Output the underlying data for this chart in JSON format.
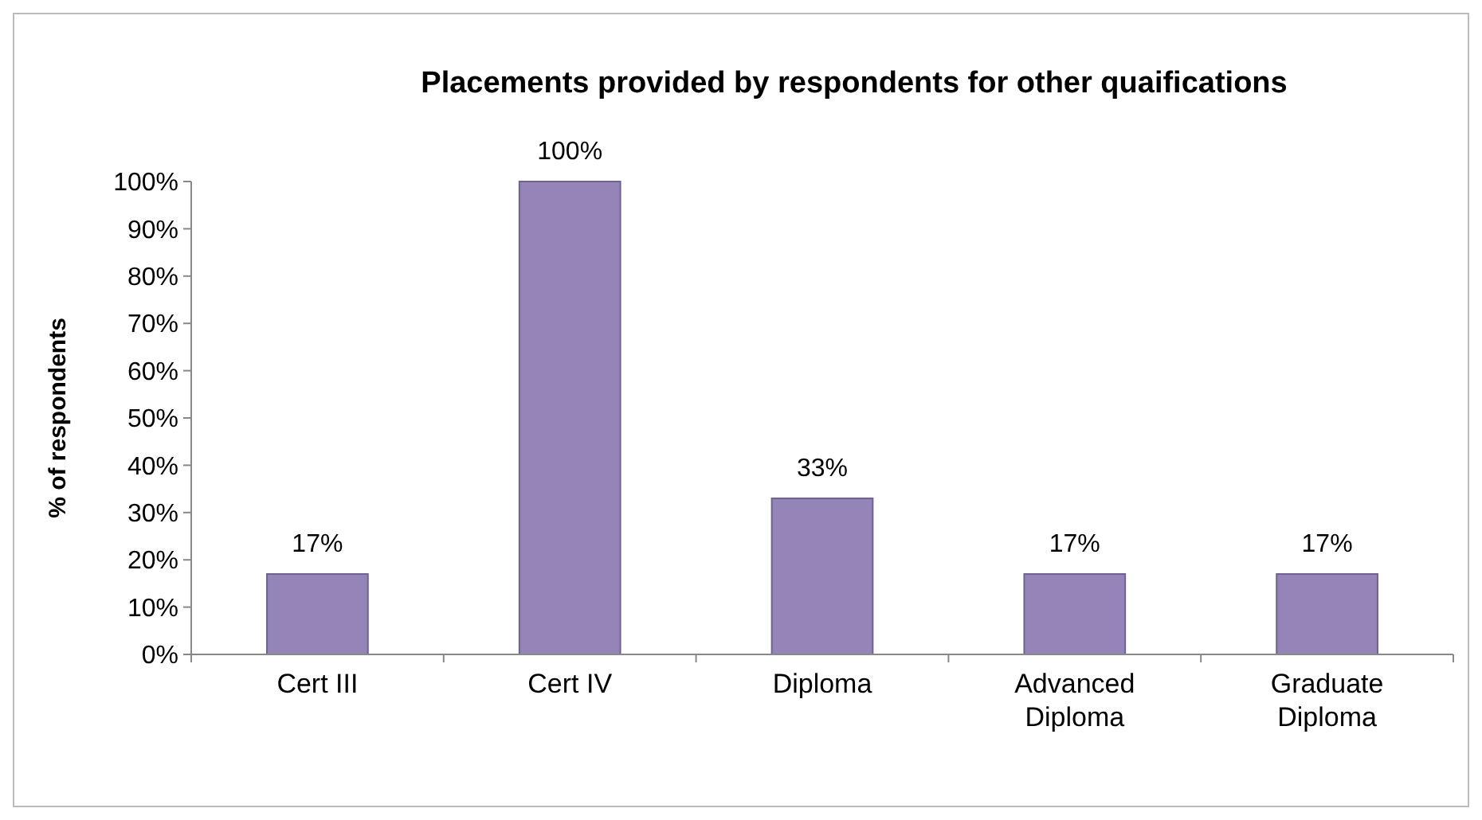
{
  "chart_data": {
    "type": "bar",
    "title": "Placements provided by respondents for other quaifications",
    "ylabel": "% of respondents",
    "categories": [
      "Cert III",
      "Cert IV",
      "Diploma",
      "Advanced Diploma",
      "Graduate Diploma"
    ],
    "values": [
      17,
      100,
      33,
      17,
      17
    ],
    "value_labels": [
      "17%",
      "100%",
      "33%",
      "17%",
      "17%"
    ],
    "color": "#9484b8",
    "ylim": [
      0,
      100
    ],
    "yticks": [
      {
        "value": 0,
        "label": "0%"
      },
      {
        "value": 10,
        "label": "10%"
      },
      {
        "value": 20,
        "label": "20%"
      },
      {
        "value": 30,
        "label": "30%"
      },
      {
        "value": 40,
        "label": "40%"
      },
      {
        "value": 50,
        "label": "50%"
      },
      {
        "value": 60,
        "label": "60%"
      },
      {
        "value": 70,
        "label": "70%"
      },
      {
        "value": 80,
        "label": "80%"
      },
      {
        "value": 90,
        "label": "90%"
      },
      {
        "value": 100,
        "label": "100%"
      }
    ],
    "grid": false
  }
}
